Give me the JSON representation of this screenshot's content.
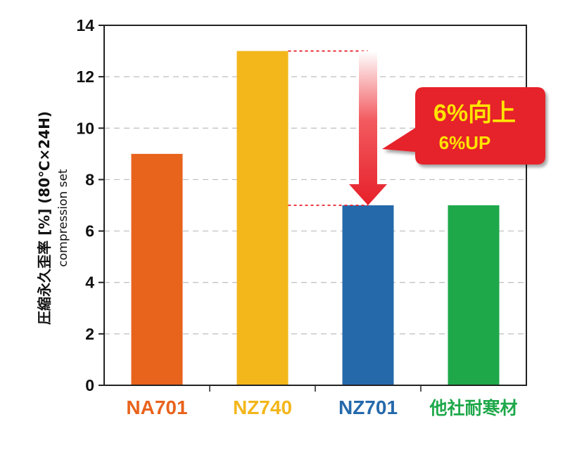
{
  "chart_data": {
    "type": "bar",
    "categories": [
      "NA701",
      "NZ740",
      "NZ701",
      "他社耐寒材"
    ],
    "values": [
      9.0,
      13.0,
      7.0,
      7.0
    ],
    "colors": [
      "#e8631c",
      "#f3b61b",
      "#2569ab",
      "#1ea84a"
    ],
    "ylabel": "圧縮永久歪率 [%] (80℃×24H)",
    "ylabel_sub": "compression set",
    "ylim": [
      0,
      14
    ],
    "yticks": [
      0,
      2,
      4,
      6,
      8,
      10,
      12,
      14
    ],
    "grid": true,
    "annotation": {
      "line1": "6%向上",
      "line2": "6%UP",
      "from_value": 13.0,
      "to_value": 7.0,
      "arrow_color": "#e6202a",
      "box_color": "#e6202a",
      "line1_color": "#ffe400",
      "line2_color": "#ffe400"
    }
  }
}
